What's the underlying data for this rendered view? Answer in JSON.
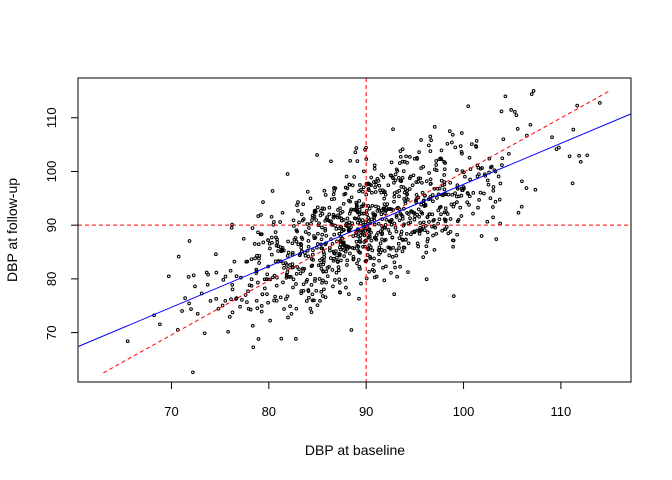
{
  "chart_data": {
    "type": "scatter",
    "title": "",
    "xlabel": "DBP at baseline",
    "ylabel": "DBP at follow-up",
    "xlim": [
      60.4,
      117.2
    ],
    "ylim": [
      60.8,
      117.4
    ],
    "xticks": [
      70,
      80,
      90,
      100,
      110
    ],
    "yticks": [
      70,
      80,
      90,
      100,
      110
    ],
    "grid": false,
    "legend": "none",
    "reference_lines": [
      {
        "name": "vertical-mean-line",
        "orientation": "vertical",
        "value": 90,
        "color": "#ff0000",
        "style": "dashed"
      },
      {
        "name": "horizontal-mean-line",
        "orientation": "horizontal",
        "value": 90,
        "color": "#ff0000",
        "style": "dashed"
      }
    ],
    "identity_line": {
      "name": "identity-line",
      "from": [
        63,
        62.5
      ],
      "to": [
        115,
        115
      ],
      "color": "#ff0000",
      "style": "dashed"
    },
    "regression_line": {
      "name": "regression-line",
      "intercept": 21.3,
      "slope": 0.763,
      "color": "#0000ff",
      "style": "solid"
    },
    "points": {
      "n": 1000,
      "x_mean": 90,
      "x_sd": 7.5,
      "y_mean": 90,
      "y_sd": 8.0,
      "correlation": 0.715,
      "note": "approximate distribution; individual points regenerated from summary statistics",
      "highlighted_extremes": [
        {
          "x": 107.2,
          "y": 115
        },
        {
          "x": 107,
          "y": 114.4
        },
        {
          "x": 104.3,
          "y": 114
        },
        {
          "x": 72.2,
          "y": 62.6
        },
        {
          "x": 65.5,
          "y": 68.4
        },
        {
          "x": 111.2,
          "y": 97.8
        },
        {
          "x": 112.7,
          "y": 103
        },
        {
          "x": 99,
          "y": 76.8
        }
      ]
    }
  }
}
